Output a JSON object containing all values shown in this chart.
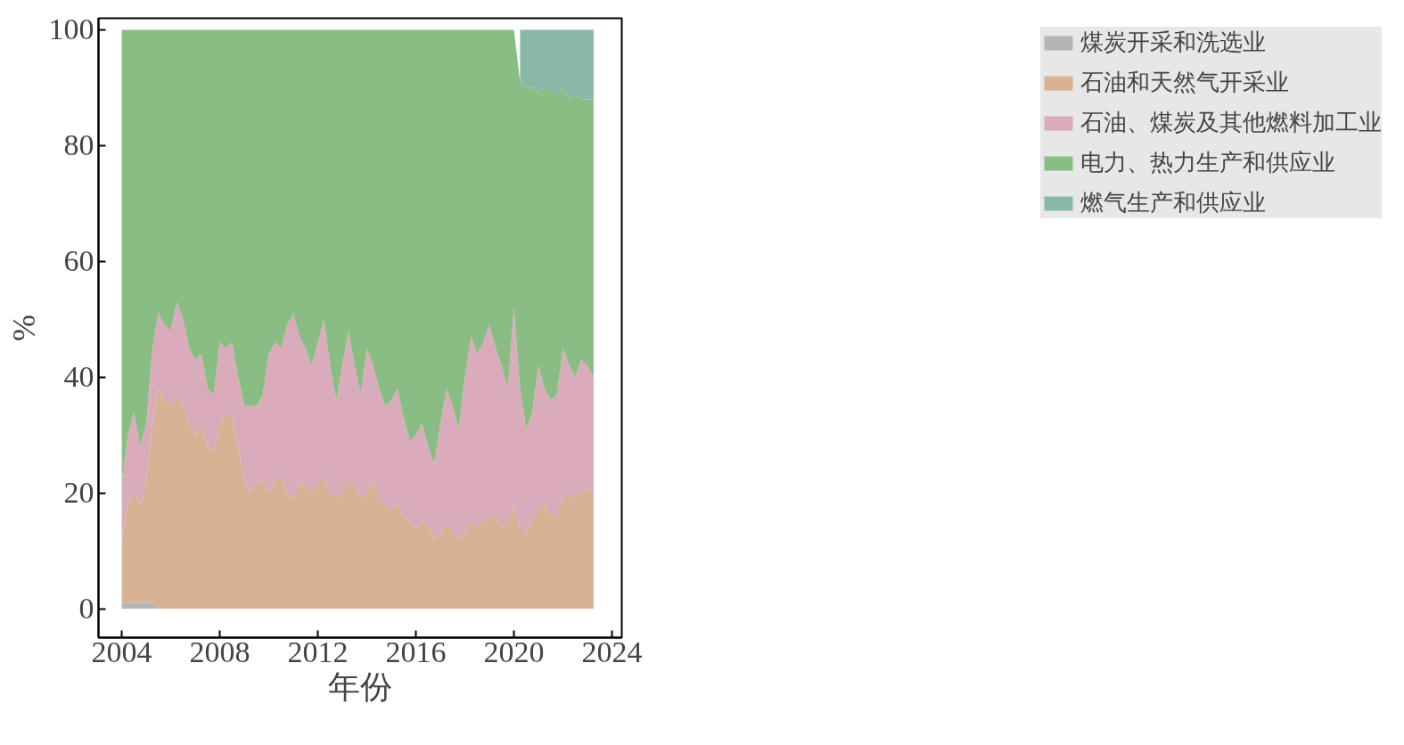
{
  "chart_data": {
    "type": "area",
    "stacked": true,
    "xlabel": "年份",
    "ylabel": "%",
    "xlim": [
      2003.05,
      2024.4
    ],
    "ylim": [
      -5,
      102
    ],
    "xticks": [
      2004,
      2008,
      2012,
      2016,
      2020,
      2024
    ],
    "yticks": [
      0,
      20,
      40,
      60,
      80,
      100
    ],
    "grid": false,
    "legend": "right",
    "x": [
      2004.0,
      2004.25,
      2004.5,
      2004.75,
      2005.0,
      2005.25,
      2005.5,
      2005.75,
      2006.0,
      2006.25,
      2006.5,
      2006.75,
      2007.0,
      2007.25,
      2007.5,
      2007.75,
      2008.0,
      2008.25,
      2008.5,
      2008.75,
      2009.0,
      2009.25,
      2009.5,
      2009.75,
      2010.0,
      2010.25,
      2010.5,
      2010.75,
      2011.0,
      2011.25,
      2011.5,
      2011.75,
      2012.0,
      2012.25,
      2012.5,
      2012.75,
      2013.0,
      2013.25,
      2013.5,
      2013.75,
      2014.0,
      2014.25,
      2014.5,
      2014.75,
      2015.0,
      2015.25,
      2015.5,
      2015.75,
      2016.0,
      2016.25,
      2016.5,
      2016.75,
      2017.0,
      2017.25,
      2017.5,
      2017.75,
      2018.0,
      2018.25,
      2018.5,
      2018.75,
      2019.0,
      2019.25,
      2019.5,
      2019.75,
      2020.0,
      2020.25,
      2020.5,
      2020.75,
      2021.0,
      2021.25,
      2021.5,
      2021.75,
      2022.0,
      2022.25,
      2022.5,
      2022.75,
      2023.0,
      2023.25
    ],
    "series": [
      {
        "name": "煤炭开采和洗选业",
        "color": "#b5b5b5",
        "values": [
          1,
          1,
          1,
          1,
          1,
          1,
          0,
          0,
          0,
          0,
          0,
          0,
          0,
          0,
          0,
          0,
          0,
          0,
          0,
          0,
          0,
          0,
          0,
          0,
          0,
          0,
          0,
          0,
          0,
          0,
          0,
          0,
          0,
          0,
          0,
          0,
          0,
          0,
          0,
          0,
          0,
          0,
          0,
          0,
          0,
          0,
          0,
          0,
          0,
          0,
          0,
          0,
          0,
          0,
          0,
          0,
          0,
          0,
          0,
          0,
          0,
          0,
          0,
          0,
          0,
          0,
          0,
          0,
          0,
          0,
          0,
          0,
          0,
          0,
          0,
          0,
          0,
          0
        ]
      },
      {
        "name": "石油和天然气开采业",
        "color": "#d8b294",
        "values": [
          11,
          17,
          19,
          17,
          21,
          31,
          38,
          36,
          35,
          37,
          35,
          32,
          30,
          32,
          28,
          27,
          32,
          34,
          33,
          28,
          22,
          20,
          22,
          22,
          20,
          22,
          23,
          20,
          19,
          22,
          21,
          20,
          22,
          23,
          20,
          19,
          20,
          22,
          21,
          19,
          20,
          22,
          19,
          18,
          17,
          18,
          16,
          15,
          14,
          15,
          14,
          12,
          13,
          15,
          13,
          12,
          13,
          15,
          14,
          15,
          16,
          16,
          14,
          15,
          18,
          14,
          13,
          15,
          17,
          18,
          16,
          16,
          19,
          20,
          19,
          20,
          21,
          20
        ]
      },
      {
        "name": "石油、煤炭及其他燃料加工业",
        "color": "#d9abbb",
        "values": [
          10,
          12,
          14,
          10,
          10,
          13,
          13,
          13,
          13,
          16,
          15,
          13,
          13,
          12,
          10,
          10,
          14,
          11,
          13,
          12,
          13,
          15,
          13,
          15,
          24,
          24,
          22,
          29,
          32,
          25,
          24,
          22,
          24,
          27,
          22,
          17,
          22,
          26,
          21,
          18,
          25,
          20,
          19,
          17,
          19,
          20,
          17,
          14,
          16,
          17,
          14,
          13,
          19,
          23,
          22,
          19,
          27,
          32,
          30,
          31,
          33,
          29,
          28,
          23,
          34,
          24,
          18,
          19,
          25,
          20,
          20,
          21,
          26,
          22,
          21,
          23,
          21,
          20
        ]
      },
      {
        "name": "电力、热力生产和供应业",
        "color": "#8abd84",
        "values": [
          78,
          70,
          66,
          72,
          68,
          55,
          49,
          51,
          52,
          47,
          50,
          55,
          57,
          56,
          62,
          63,
          54,
          55,
          54,
          60,
          65,
          65,
          65,
          63,
          56,
          54,
          55,
          51,
          49,
          53,
          55,
          58,
          54,
          50,
          58,
          64,
          58,
          52,
          58,
          63,
          55,
          58,
          62,
          65,
          64,
          62,
          67,
          71,
          70,
          68,
          72,
          75,
          68,
          62,
          65,
          69,
          60,
          53,
          56,
          54,
          51,
          55,
          58,
          62,
          48,
          53,
          59,
          56,
          47,
          52,
          53,
          52,
          45,
          46,
          49,
          45,
          46,
          48
        ]
      },
      {
        "name": "燃气生产和供应业",
        "color": "#88b8a8",
        "values": [
          null,
          null,
          null,
          null,
          null,
          null,
          null,
          null,
          null,
          null,
          null,
          null,
          null,
          null,
          null,
          null,
          null,
          null,
          null,
          null,
          null,
          null,
          null,
          null,
          null,
          null,
          null,
          null,
          null,
          null,
          null,
          null,
          null,
          null,
          null,
          null,
          null,
          null,
          null,
          null,
          null,
          null,
          null,
          null,
          null,
          null,
          null,
          null,
          null,
          null,
          null,
          null,
          null,
          null,
          null,
          null,
          null,
          null,
          null,
          null,
          null,
          null,
          null,
          null,
          null,
          9,
          10,
          10,
          11,
          10,
          11,
          11,
          10,
          12,
          11,
          12,
          12,
          12
        ]
      }
    ]
  }
}
